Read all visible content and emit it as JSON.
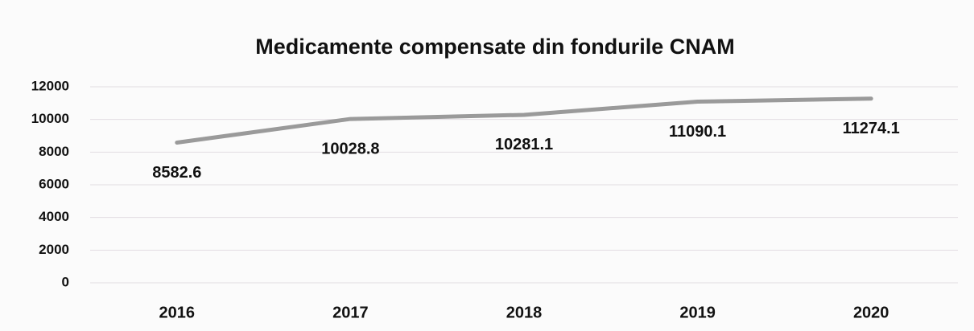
{
  "chart_data": {
    "type": "line",
    "title": "Medicamente compensate din fondurile CNAM",
    "categories": [
      "2016",
      "2017",
      "2018",
      "2019",
      "2020"
    ],
    "series": [
      {
        "name": "Medicamente compensate",
        "color": "#9a9a9a",
        "values": [
          8582.6,
          10028.8,
          10281.1,
          11090.1,
          11274.1
        ]
      }
    ],
    "ylim": [
      0,
      12000
    ],
    "yticks": [
      0,
      2000,
      4000,
      6000,
      8000,
      10000,
      12000
    ],
    "grid": true
  }
}
